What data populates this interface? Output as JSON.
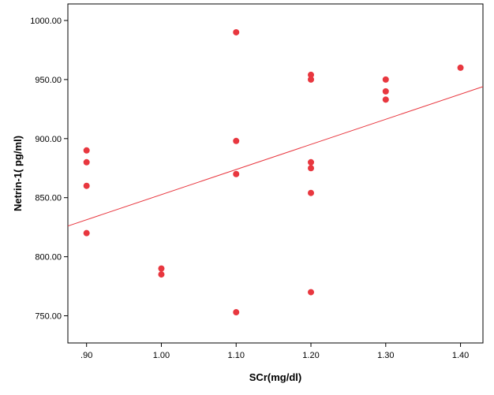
{
  "chart_data": {
    "type": "scatter",
    "title": "",
    "xlabel": "SCr(mg/dl)",
    "ylabel": "Netrin-1( pg/ml)",
    "xlim": [
      0.875,
      1.43
    ],
    "ylim": [
      727,
      1014
    ],
    "x_ticks": [
      0.9,
      1.0,
      1.1,
      1.2,
      1.3,
      1.4
    ],
    "x_tick_labels": [
      ".90",
      "1.00",
      "1.10",
      "1.20",
      "1.30",
      "1.40"
    ],
    "y_ticks": [
      750,
      800,
      850,
      900,
      950,
      1000
    ],
    "y_tick_labels": [
      "750.00",
      "800.00",
      "850.00",
      "900.00",
      "950.00",
      "1000.00"
    ],
    "grid": false,
    "legend": "none",
    "point_color": "#e8373f",
    "line_color": "#e8373f",
    "points": [
      {
        "x": 0.9,
        "y": 890
      },
      {
        "x": 0.9,
        "y": 880
      },
      {
        "x": 0.9,
        "y": 860
      },
      {
        "x": 0.9,
        "y": 820
      },
      {
        "x": 1.0,
        "y": 790
      },
      {
        "x": 1.0,
        "y": 785
      },
      {
        "x": 1.1,
        "y": 990
      },
      {
        "x": 1.1,
        "y": 898
      },
      {
        "x": 1.1,
        "y": 870
      },
      {
        "x": 1.1,
        "y": 753
      },
      {
        "x": 1.2,
        "y": 954
      },
      {
        "x": 1.2,
        "y": 950
      },
      {
        "x": 1.2,
        "y": 880
      },
      {
        "x": 1.2,
        "y": 875
      },
      {
        "x": 1.2,
        "y": 854
      },
      {
        "x": 1.2,
        "y": 770
      },
      {
        "x": 1.3,
        "y": 950
      },
      {
        "x": 1.3,
        "y": 940
      },
      {
        "x": 1.3,
        "y": 933
      },
      {
        "x": 1.4,
        "y": 960
      }
    ],
    "fit_line": {
      "x": [
        0.875,
        1.43
      ],
      "y": [
        826,
        944
      ]
    }
  }
}
